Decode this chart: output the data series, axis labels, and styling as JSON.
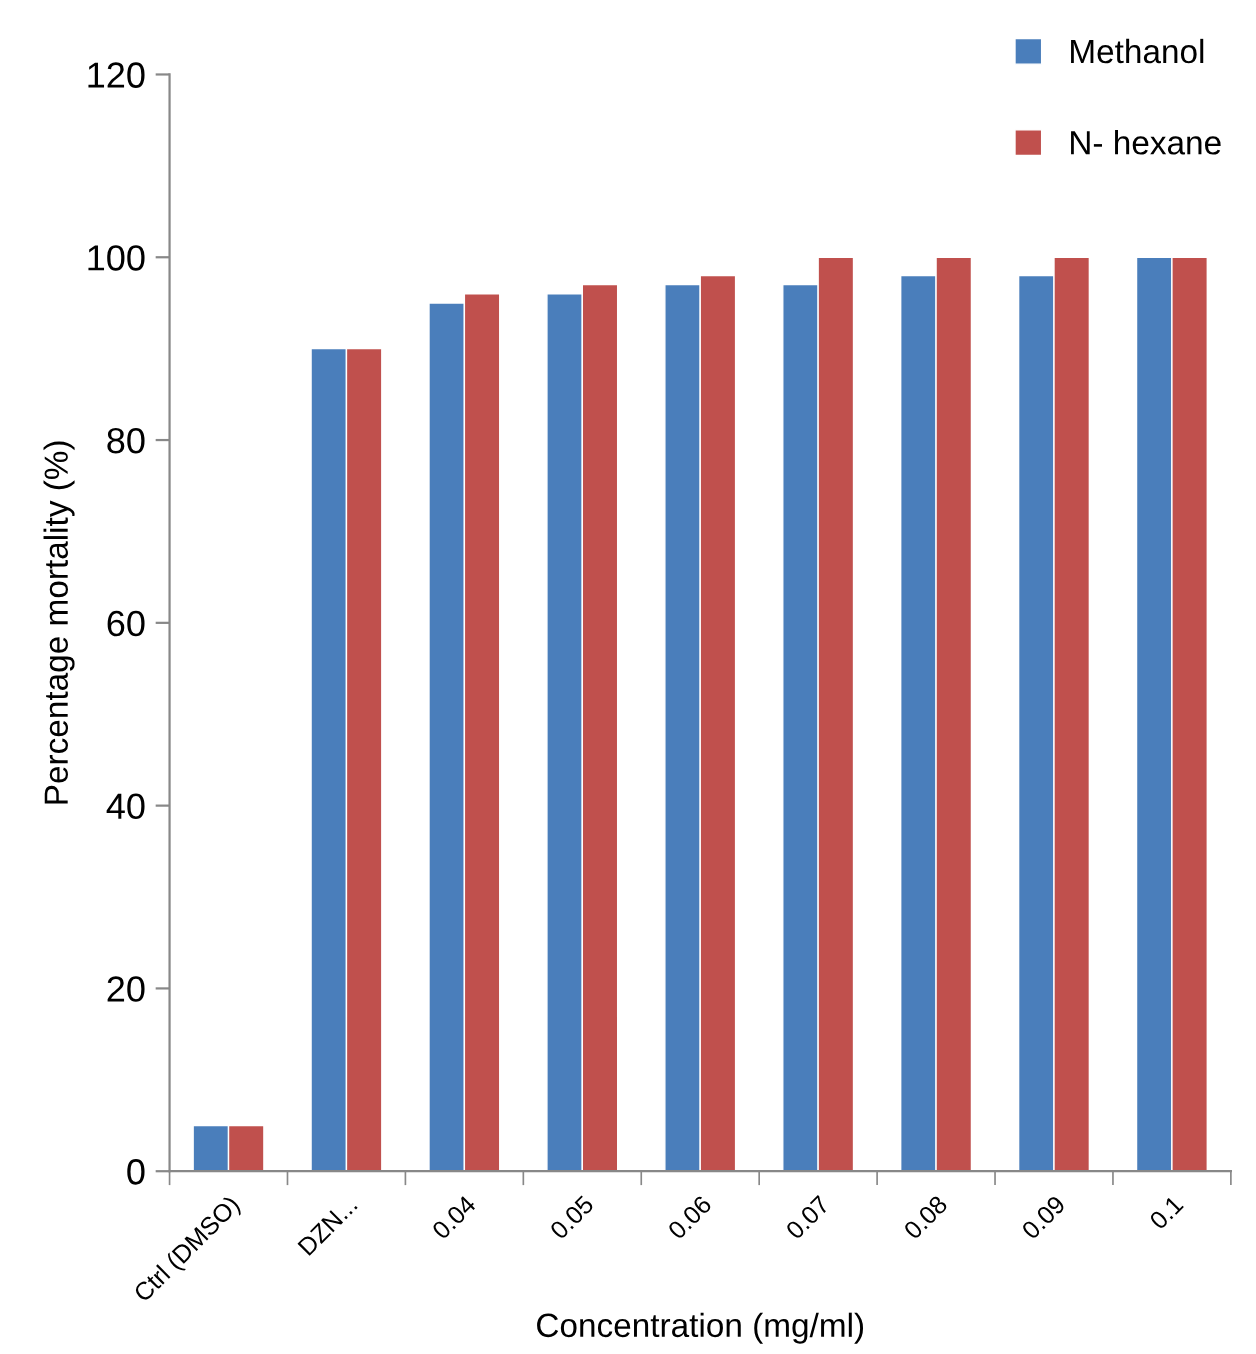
{
  "chart_data": {
    "type": "bar",
    "xlabel": "Concentration (mg/ml)",
    "ylabel": "Percentage mortality (%)",
    "categories": [
      "Ctrl (DMSO)",
      "DZN...",
      "0.04",
      "0.05",
      "0.06",
      "0.07",
      "0.08",
      "0.09",
      "0.1"
    ],
    "series": [
      {
        "name": "Methanol",
        "color": "#4a7ebb",
        "values": [
          5,
          90,
          95,
          96,
          97,
          97,
          98,
          98,
          100
        ]
      },
      {
        "name": "N- hexane",
        "color": "#c0504d",
        "values": [
          5,
          90,
          96,
          97,
          98,
          100,
          100,
          100,
          100
        ]
      }
    ],
    "ylim": [
      0,
      120
    ],
    "yticks": [
      0,
      20,
      40,
      60,
      80,
      100,
      120
    ],
    "grid": false,
    "legend": "top right"
  }
}
